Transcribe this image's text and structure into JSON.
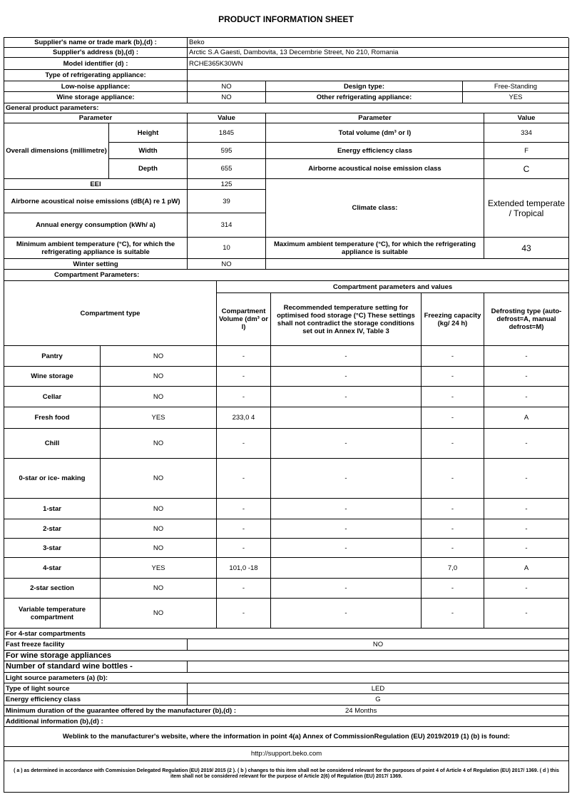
{
  "title": "PRODUCT INFORMATION SHEET",
  "supplier": {
    "name_label": "Supplier's name or trade mark (b),(d) :",
    "name": "Beko",
    "address_label": "Supplier's address (b),(d) :",
    "address": "Arctic S.A  Gaesti, Dambovita, 13 Decembrie Street, No 210, Romania",
    "model_label": "Model identifier (d) :",
    "model": "RCHE365K30WN",
    "type_label": "Type of refrigerating appliance:"
  },
  "appliance_type": {
    "low_noise_label": "Low-noise appliance:",
    "low_noise": "NO",
    "design_label": "Design type:",
    "design": "Free-Standing",
    "wine_label": "Wine storage appliance:",
    "wine": "NO",
    "other_label": "Other refrigerating appliance:",
    "other": "YES"
  },
  "general": {
    "heading": "General product parameters:",
    "param_header": "Parameter",
    "value_header": "Value",
    "dimensions_label": "Overall dimensions (millimetre)",
    "height_label": "Height",
    "height": "1845",
    "width_label": "Width",
    "width": "595",
    "depth_label": "Depth",
    "depth": "655",
    "total_volume_label": "Total volume (dm³ or l)",
    "total_volume": "334",
    "energy_class_label": "Energy efficiency class",
    "energy_class": "F",
    "noise_class_label": "Airborne acoustical noise emission class",
    "noise_class": "C",
    "eei_label": "EEI",
    "eei": "125",
    "noise_label": "Airborne acoustical noise emissions (dB(A) re 1 pW)",
    "noise": "39",
    "annual_label": "Annual energy consumption (kWh/ a)",
    "annual": "314",
    "climate_label": "Climate class:",
    "climate": "Extended temperate / Tropical",
    "min_ambient_label": "Minimum ambient temperature (°C), for which the refrigerating appliance is suitable",
    "min_ambient": "10",
    "max_ambient_label": "Maximum ambient temperature (°C), for which the refrigerating appliance is suitable",
    "max_ambient": "43",
    "winter_label": "Winter setting",
    "winter": "NO"
  },
  "compartments": {
    "heading": "Compartment Parameters:",
    "type_header": "Compartment type",
    "values_header": "Compartment parameters and values",
    "volume_header": "Compartment Volume (dm³ or l)",
    "temp_header": "Recommended temperature setting for optimised food storage (°C) These settings shall not contradict the storage conditions set out in Annex IV, Table 3",
    "freezing_header": "Freezing capacity (kg/ 24 h)",
    "defrost_header": "Defrosting type (auto-defrost=A, manual defrost=M)",
    "rows": [
      {
        "name": "Pantry",
        "present": "NO",
        "volume": "-",
        "temp": "-",
        "freezing": "-",
        "defrost": "-"
      },
      {
        "name": "Wine storage",
        "present": "NO",
        "volume": "-",
        "temp": "-",
        "freezing": "-",
        "defrost": "-"
      },
      {
        "name": "Cellar",
        "present": "NO",
        "volume": "-",
        "temp": "-",
        "freezing": "-",
        "defrost": "-"
      },
      {
        "name": "Fresh food",
        "present": "YES",
        "volume": "233,0 4",
        "temp": "",
        "freezing": "-",
        "defrost": "A"
      },
      {
        "name": "Chill",
        "present": "NO",
        "volume": "-",
        "temp": "-",
        "freezing": "-",
        "defrost": "-"
      },
      {
        "name": "0-star or ice- making",
        "present": "NO",
        "volume": "-",
        "temp": "-",
        "freezing": "-",
        "defrost": "-"
      },
      {
        "name": "1-star",
        "present": "NO",
        "volume": "-",
        "temp": "-",
        "freezing": "-",
        "defrost": "-"
      },
      {
        "name": "2-star",
        "present": "NO",
        "volume": "-",
        "temp": "-",
        "freezing": "-",
        "defrost": "-"
      },
      {
        "name": "3-star",
        "present": "NO",
        "volume": "-",
        "temp": "-",
        "freezing": "-",
        "defrost": "-"
      },
      {
        "name": "4-star",
        "present": "YES",
        "volume": "101,0 -18",
        "temp": "",
        "freezing": "7,0",
        "defrost": "A"
      },
      {
        "name": "2-star section",
        "present": "NO",
        "volume": "-",
        "temp": "-",
        "freezing": "-",
        "defrost": "-"
      },
      {
        "name": "Variable temperature compartment",
        "present": "NO",
        "volume": "-",
        "temp": "-",
        "freezing": "-",
        "defrost": "-"
      }
    ]
  },
  "four_star": {
    "heading": "For 4-star compartments",
    "fast_freeze_label": "Fast freeze facility",
    "fast_freeze": "NO"
  },
  "wine": {
    "heading": "For wine storage appliances",
    "bottles_label": "Number of standard wine bottles -"
  },
  "light": {
    "heading": "Light source parameters (a) (b):",
    "type_label": "Type of light source",
    "type": "LED",
    "class_label": "Energy efficiency class",
    "class": "G"
  },
  "guarantee": {
    "label": "Minimum duration of the guarantee offered by the manufacturer (b),(d) :",
    "value": "24 Months"
  },
  "additional_label": "Additional information (b),(d) :",
  "weblink_label": "Weblink to the manufacturer's website, where the information in point 4(a) Annex of CommissionRegulation (EU) 2019/2019 (1) (b) is found:",
  "weblink": "http://support.beko.com",
  "footnote": "( a ) as determined in accordance with Commission Delegated Regulation (EU) 2019/ 2015 (2 ). ( b ) changes to this item shall not be considered relevant for the purposes of point 4 of Article 4 of Regulation (EU) 2017/ 1369. ( d ) this item shall not be considered relevant for the purpose of Article 2(6) of Regulation (EU) 2017/ 1369."
}
